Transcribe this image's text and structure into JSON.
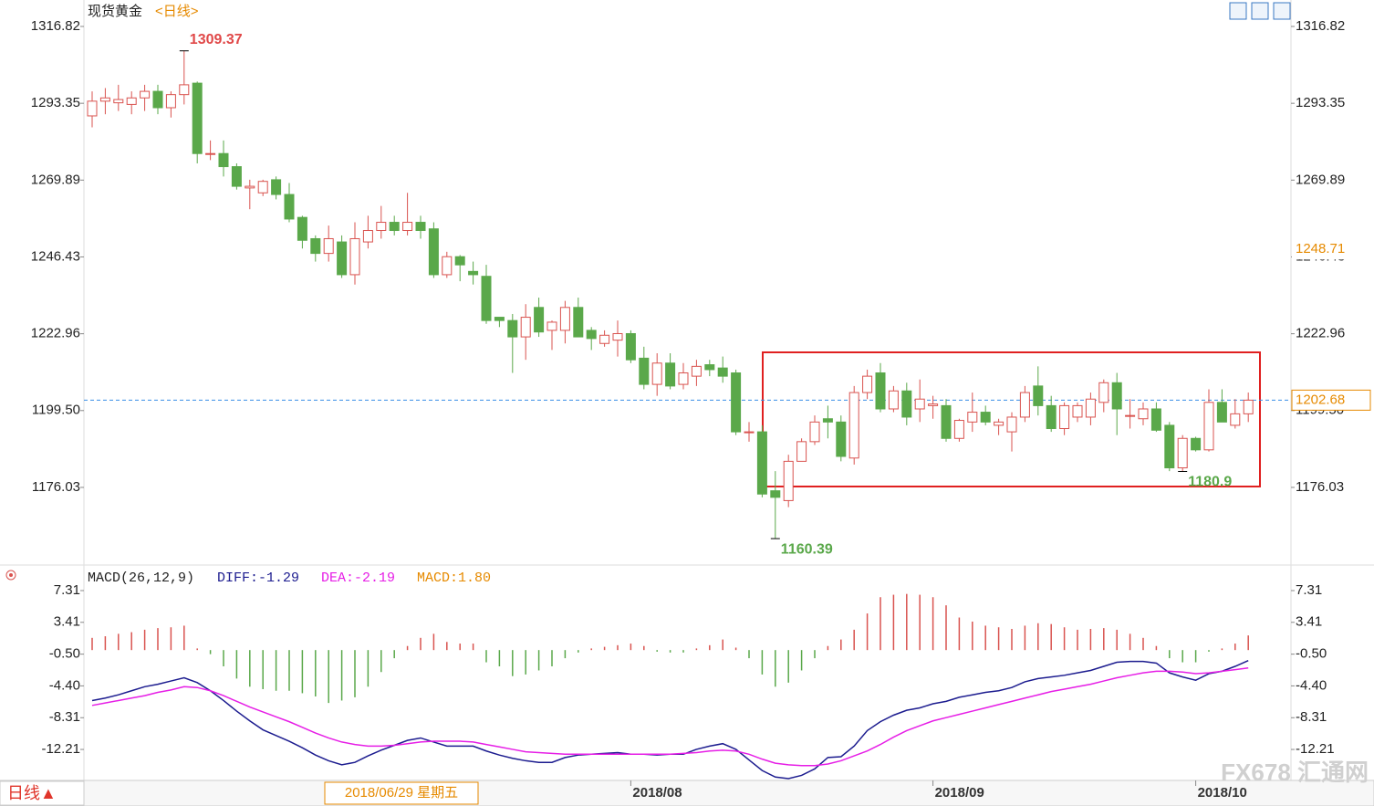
{
  "chart_data": [
    {
      "type": "candlestick",
      "title": "现货黄金",
      "subtitle": "<日线>",
      "period": "日线▲",
      "watermark": "FX678 汇通网",
      "up_color": "#d9534f",
      "down_color": "#5aa84a",
      "categories": [
        null,
        null,
        null,
        null,
        null,
        null,
        null,
        null,
        null,
        null,
        null,
        null,
        null,
        null,
        null,
        null,
        null,
        null,
        null,
        null,
        null,
        null,
        null,
        null,
        null,
        null,
        null,
        null,
        null,
        null,
        null,
        null,
        null,
        null,
        null,
        null,
        null,
        null,
        null,
        null,
        null,
        "2018/08",
        null,
        null,
        null,
        null,
        null,
        null,
        null,
        null,
        null,
        null,
        null,
        null,
        null,
        null,
        null,
        null,
        null,
        null,
        null,
        null,
        null,
        null,
        "2018/09",
        null,
        null,
        null,
        null,
        null,
        null,
        null,
        null,
        null,
        null,
        null,
        null,
        null,
        null,
        null,
        null,
        null,
        null,
        null,
        "2018/10",
        null,
        null,
        null,
        null
      ],
      "open": [
        1289.5,
        1294,
        1293.5,
        1293,
        1295,
        1297,
        1292,
        1296,
        1299.5,
        1278,
        1278,
        1274,
        1267.5,
        1266,
        1270,
        1265.5,
        1258.5,
        1252,
        1247.5,
        1251,
        1241,
        1251,
        1254.5,
        1257,
        1254.5,
        1257,
        1255,
        1241,
        1246.5,
        1242,
        1240.5,
        1228,
        1227,
        1222,
        1231,
        1224,
        1224,
        1231,
        1224,
        1220,
        1221,
        1223,
        1215.5,
        1207.5,
        1214,
        1207.5,
        1210,
        1213.5,
        1212.5,
        1211,
        1193,
        1193,
        1175,
        1172,
        1184,
        1190,
        1197,
        1196,
        1185,
        1205,
        1211,
        1200,
        1205.5,
        1200,
        1201,
        1201,
        1191,
        1196,
        1199,
        1195,
        1193,
        1197.5,
        1207,
        1201,
        1194,
        1197.5,
        1197.5,
        1202,
        1208,
        1198,
        1197,
        1200,
        1195,
        1182,
        1191,
        1187.5,
        1202,
        1195,
        1198.5
      ],
      "high": [
        1297,
        1298,
        1299,
        1297,
        1299,
        1299,
        1297,
        1309.37,
        1300,
        1282,
        1282,
        1275,
        1270,
        1270,
        1271,
        1269,
        1259,
        1253,
        1256,
        1253,
        1257,
        1259,
        1262,
        1259,
        1266,
        1259,
        1257,
        1248,
        1247,
        1245,
        1244,
        1228,
        1229,
        1232,
        1234,
        1227,
        1233,
        1234,
        1225,
        1224,
        1227,
        1224,
        1219,
        1217,
        1217,
        1214,
        1215,
        1215,
        1216,
        1212,
        1196,
        1195,
        1181,
        1186,
        1191,
        1198,
        1201,
        1198,
        1207,
        1212,
        1214,
        1207,
        1208,
        1209,
        1204,
        1203,
        1197,
        1205,
        1201,
        1197,
        1199,
        1207,
        1213,
        1204,
        1202,
        1202,
        1205,
        1209,
        1211,
        1203,
        1202,
        1202,
        1196,
        1192,
        1191.5,
        1206,
        1206,
        1203,
        1205
      ],
      "low": [
        1286,
        1290,
        1291,
        1290,
        1291,
        1290,
        1289,
        1293,
        1275,
        1276,
        1271,
        1267,
        1261,
        1265,
        1264,
        1257,
        1249,
        1245,
        1245,
        1240,
        1238,
        1249,
        1252,
        1253,
        1253,
        1252,
        1240,
        1240,
        1239,
        1238,
        1226,
        1225,
        1211,
        1215,
        1222,
        1218,
        1220,
        1222,
        1218,
        1219,
        1216,
        1214,
        1206,
        1204,
        1206,
        1206,
        1207,
        1210,
        1208,
        1192,
        1190,
        1173,
        1160.39,
        1170,
        1184,
        1189,
        1191,
        1184,
        1183,
        1203,
        1199,
        1199,
        1195,
        1196,
        1197,
        1190,
        1190,
        1193,
        1195,
        1192,
        1187,
        1196,
        1198,
        1193,
        1192,
        1196,
        1195,
        1199,
        1192,
        1194,
        1195,
        1193,
        1181,
        1180.9,
        1187,
        1187,
        1196,
        1194,
        1196
      ],
      "close": [
        1294,
        1295,
        1294.5,
        1295,
        1297,
        1292,
        1296,
        1299,
        1278,
        1278,
        1274,
        1268,
        1268,
        1269.5,
        1265.5,
        1258,
        1251.5,
        1247.5,
        1252,
        1241,
        1252,
        1254.5,
        1257,
        1254.5,
        1257,
        1254.5,
        1241,
        1246.5,
        1244,
        1241,
        1227,
        1227,
        1222,
        1228,
        1223.5,
        1226.5,
        1231,
        1222,
        1221.5,
        1222.5,
        1223,
        1215,
        1207.5,
        1214,
        1207,
        1211,
        1213,
        1212,
        1210,
        1193,
        1193,
        1174,
        1173,
        1184,
        1190,
        1196,
        1196,
        1185.5,
        1205,
        1210,
        1200,
        1205.5,
        1197.5,
        1203,
        1201.5,
        1191,
        1196.5,
        1199,
        1196,
        1196,
        1197.5,
        1205,
        1201,
        1194,
        1201,
        1201,
        1203,
        1208,
        1200,
        1198,
        1200,
        1193.5,
        1182,
        1191,
        1187.5,
        1202,
        1196,
        1198.5,
        1202.68
      ],
      "ylim": [
        1152.6,
        1324.9
      ],
      "yticks": [
        1316.82,
        1293.35,
        1269.89,
        1246.43,
        1222.96,
        {
          "value": 1199.5,
          "label": "1199.50"
        },
        1176.03
      ],
      "cursor": {
        "label": "2018/06/29 星期五",
        "value": 1248.71
      }
    },
    {
      "type": "macd",
      "title": "MACD(26,12,9)",
      "series": [
        {
          "name": "DIFF:-1.29",
          "color": "#1c1c8f",
          "values": [
            -6.2,
            -5.9,
            -5.5,
            -5.0,
            -4.5,
            -4.2,
            -3.8,
            -3.4,
            -4.0,
            -5.0,
            -6.2,
            -7.5,
            -8.7,
            -9.8,
            -10.5,
            -11.2,
            -12.0,
            -12.9,
            -13.6,
            -14.1,
            -13.8,
            -13.0,
            -12.3,
            -11.7,
            -11.1,
            -10.8,
            -11.3,
            -11.8,
            -11.8,
            -11.8,
            -12.4,
            -12.9,
            -13.3,
            -13.6,
            -13.8,
            -13.8,
            -13.2,
            -12.9,
            -12.8,
            -12.7,
            -12.6,
            -12.8,
            -12.8,
            -12.9,
            -12.8,
            -12.8,
            -12.2,
            -11.8,
            -11.5,
            -12.2,
            -13.5,
            -14.8,
            -15.6,
            -15.8,
            -15.4,
            -14.6,
            -13.2,
            -13.1,
            -11.8,
            -9.9,
            -8.8,
            -8.0,
            -7.4,
            -7.1,
            -6.6,
            -6.3,
            -5.8,
            -5.5,
            -5.2,
            -5.0,
            -4.6,
            -3.9,
            -3.5,
            -3.3,
            -3.1,
            -2.8,
            -2.5,
            -2.0,
            -1.5,
            -1.4,
            -1.4,
            -1.6,
            -2.8,
            -3.3,
            -3.7,
            -2.9,
            -2.6,
            -2.0,
            -1.29
          ]
        },
        {
          "name": "DEA:-2.19",
          "color": "#e61ee6",
          "values": [
            -6.8,
            -6.5,
            -6.2,
            -5.9,
            -5.6,
            -5.2,
            -4.9,
            -4.5,
            -4.6,
            -5.0,
            -5.6,
            -6.3,
            -7.0,
            -7.6,
            -8.2,
            -8.8,
            -9.5,
            -10.2,
            -10.8,
            -11.3,
            -11.6,
            -11.8,
            -11.8,
            -11.7,
            -11.5,
            -11.3,
            -11.2,
            -11.2,
            -11.2,
            -11.3,
            -11.6,
            -11.9,
            -12.2,
            -12.5,
            -12.6,
            -12.7,
            -12.8,
            -12.8,
            -12.8,
            -12.8,
            -12.8,
            -12.8,
            -12.8,
            -12.8,
            -12.8,
            -12.7,
            -12.6,
            -12.4,
            -12.3,
            -12.4,
            -12.8,
            -13.4,
            -13.9,
            -14.1,
            -14.2,
            -14.2,
            -14.0,
            -13.6,
            -13.0,
            -12.4,
            -11.6,
            -10.7,
            -9.9,
            -9.3,
            -8.7,
            -8.3,
            -7.9,
            -7.5,
            -7.1,
            -6.7,
            -6.3,
            -5.9,
            -5.5,
            -5.1,
            -4.8,
            -4.5,
            -4.2,
            -3.8,
            -3.4,
            -3.1,
            -2.8,
            -2.6,
            -2.6,
            -2.7,
            -2.9,
            -2.8,
            -2.6,
            -2.4,
            -2.19
          ]
        }
      ],
      "histogram": {
        "name": "MACD:1.80",
        "color": "#e68a00",
        "up_color": "#d9534f",
        "down_color": "#5aa84a",
        "values": [
          1.5,
          1.7,
          2.0,
          2.2,
          2.5,
          2.7,
          2.8,
          3.0,
          0.2,
          -0.5,
          -2,
          -3.5,
          -4.5,
          -4.8,
          -5,
          -5,
          -5.3,
          -5.7,
          -6.5,
          -6.2,
          -5.8,
          -4.5,
          -2.7,
          -1,
          0.5,
          1.5,
          2.0,
          1.0,
          0.8,
          0.8,
          -1.5,
          -2.0,
          -3.2,
          -3.0,
          -2.5,
          -2.0,
          -1.0,
          -0.3,
          0.2,
          0.4,
          0.6,
          0.8,
          0.5,
          -0.2,
          -0.3,
          -0.3,
          0.2,
          0.6,
          1.3,
          0.3,
          -1.0,
          -3.0,
          -4.5,
          -4.0,
          -2.5,
          -1.0,
          0.5,
          1.3,
          2.5,
          4.5,
          6.5,
          6.8,
          6.9,
          6.8,
          6.5,
          5.5,
          4.0,
          3.5,
          3.0,
          2.8,
          2.6,
          3.0,
          3.3,
          3.2,
          2.8,
          2.5,
          2.6,
          2.7,
          2.5,
          2.0,
          1.5,
          0.5,
          -1.0,
          -1.5,
          -1.5,
          -0.2,
          0.2,
          0.8,
          1.8
        ]
      },
      "ylim": [
        -16.02,
        10.34
      ],
      "yticks": [
        7.31,
        3.41,
        {
          "value": -0.5,
          "label": "-0.50"
        },
        {
          "value": -4.4,
          "label": "-4.40"
        },
        -8.31,
        -12.21
      ]
    }
  ]
}
